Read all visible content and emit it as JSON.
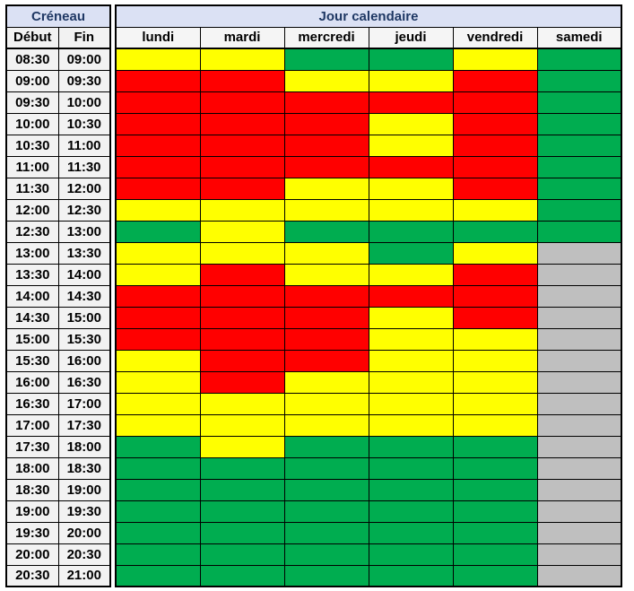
{
  "headers": {
    "creneau": "Créneau",
    "jour": "Jour calendaire",
    "debut": "Début",
    "fin": "Fin"
  },
  "colors": {
    "header_bg": "#dbe1f4",
    "header_text": "#1f3864",
    "time_bg": "#f2f2f2",
    "border": "#000000",
    "status": {
      "red": "#ff0000",
      "yellow": "#ffff00",
      "green": "#00ad50",
      "gray": "#bfbfbf"
    }
  },
  "grid": {
    "days": [
      "lundi",
      "mardi",
      "mercredi",
      "jeudi",
      "vendredi",
      "samedi"
    ],
    "rows": [
      {
        "debut": "08:30",
        "fin": "09:00",
        "cells": [
          "yellow",
          "yellow",
          "green",
          "green",
          "yellow",
          "green"
        ]
      },
      {
        "debut": "09:00",
        "fin": "09:30",
        "cells": [
          "red",
          "red",
          "yellow",
          "yellow",
          "red",
          "green"
        ]
      },
      {
        "debut": "09:30",
        "fin": "10:00",
        "cells": [
          "red",
          "red",
          "red",
          "red",
          "red",
          "green"
        ]
      },
      {
        "debut": "10:00",
        "fin": "10:30",
        "cells": [
          "red",
          "red",
          "red",
          "yellow",
          "red",
          "green"
        ]
      },
      {
        "debut": "10:30",
        "fin": "11:00",
        "cells": [
          "red",
          "red",
          "red",
          "yellow",
          "red",
          "green"
        ]
      },
      {
        "debut": "11:00",
        "fin": "11:30",
        "cells": [
          "red",
          "red",
          "red",
          "red",
          "red",
          "green"
        ]
      },
      {
        "debut": "11:30",
        "fin": "12:00",
        "cells": [
          "red",
          "red",
          "yellow",
          "yellow",
          "red",
          "green"
        ]
      },
      {
        "debut": "12:00",
        "fin": "12:30",
        "cells": [
          "yellow",
          "yellow",
          "yellow",
          "yellow",
          "yellow",
          "green"
        ]
      },
      {
        "debut": "12:30",
        "fin": "13:00",
        "cells": [
          "green",
          "yellow",
          "green",
          "green",
          "green",
          "green"
        ]
      },
      {
        "debut": "13:00",
        "fin": "13:30",
        "cells": [
          "yellow",
          "yellow",
          "yellow",
          "green",
          "yellow",
          "gray"
        ]
      },
      {
        "debut": "13:30",
        "fin": "14:00",
        "cells": [
          "yellow",
          "red",
          "yellow",
          "yellow",
          "red",
          "gray"
        ]
      },
      {
        "debut": "14:00",
        "fin": "14:30",
        "cells": [
          "red",
          "red",
          "red",
          "red",
          "red",
          "gray"
        ]
      },
      {
        "debut": "14:30",
        "fin": "15:00",
        "cells": [
          "red",
          "red",
          "red",
          "yellow",
          "red",
          "gray"
        ]
      },
      {
        "debut": "15:00",
        "fin": "15:30",
        "cells": [
          "red",
          "red",
          "red",
          "yellow",
          "yellow",
          "gray"
        ]
      },
      {
        "debut": "15:30",
        "fin": "16:00",
        "cells": [
          "yellow",
          "red",
          "red",
          "yellow",
          "yellow",
          "gray"
        ]
      },
      {
        "debut": "16:00",
        "fin": "16:30",
        "cells": [
          "yellow",
          "red",
          "yellow",
          "yellow",
          "yellow",
          "gray"
        ]
      },
      {
        "debut": "16:30",
        "fin": "17:00",
        "cells": [
          "yellow",
          "yellow",
          "yellow",
          "yellow",
          "yellow",
          "gray"
        ]
      },
      {
        "debut": "17:00",
        "fin": "17:30",
        "cells": [
          "yellow",
          "yellow",
          "yellow",
          "yellow",
          "yellow",
          "gray"
        ]
      },
      {
        "debut": "17:30",
        "fin": "18:00",
        "cells": [
          "green",
          "yellow",
          "green",
          "green",
          "green",
          "gray"
        ]
      },
      {
        "debut": "18:00",
        "fin": "18:30",
        "cells": [
          "green",
          "green",
          "green",
          "green",
          "green",
          "gray"
        ]
      },
      {
        "debut": "18:30",
        "fin": "19:00",
        "cells": [
          "green",
          "green",
          "green",
          "green",
          "green",
          "gray"
        ]
      },
      {
        "debut": "19:00",
        "fin": "19:30",
        "cells": [
          "green",
          "green",
          "green",
          "green",
          "green",
          "gray"
        ]
      },
      {
        "debut": "19:30",
        "fin": "20:00",
        "cells": [
          "green",
          "green",
          "green",
          "green",
          "green",
          "gray"
        ]
      },
      {
        "debut": "20:00",
        "fin": "20:30",
        "cells": [
          "green",
          "green",
          "green",
          "green",
          "green",
          "gray"
        ]
      },
      {
        "debut": "20:30",
        "fin": "21:00",
        "cells": [
          "green",
          "green",
          "green",
          "green",
          "green",
          "gray"
        ]
      }
    ]
  }
}
